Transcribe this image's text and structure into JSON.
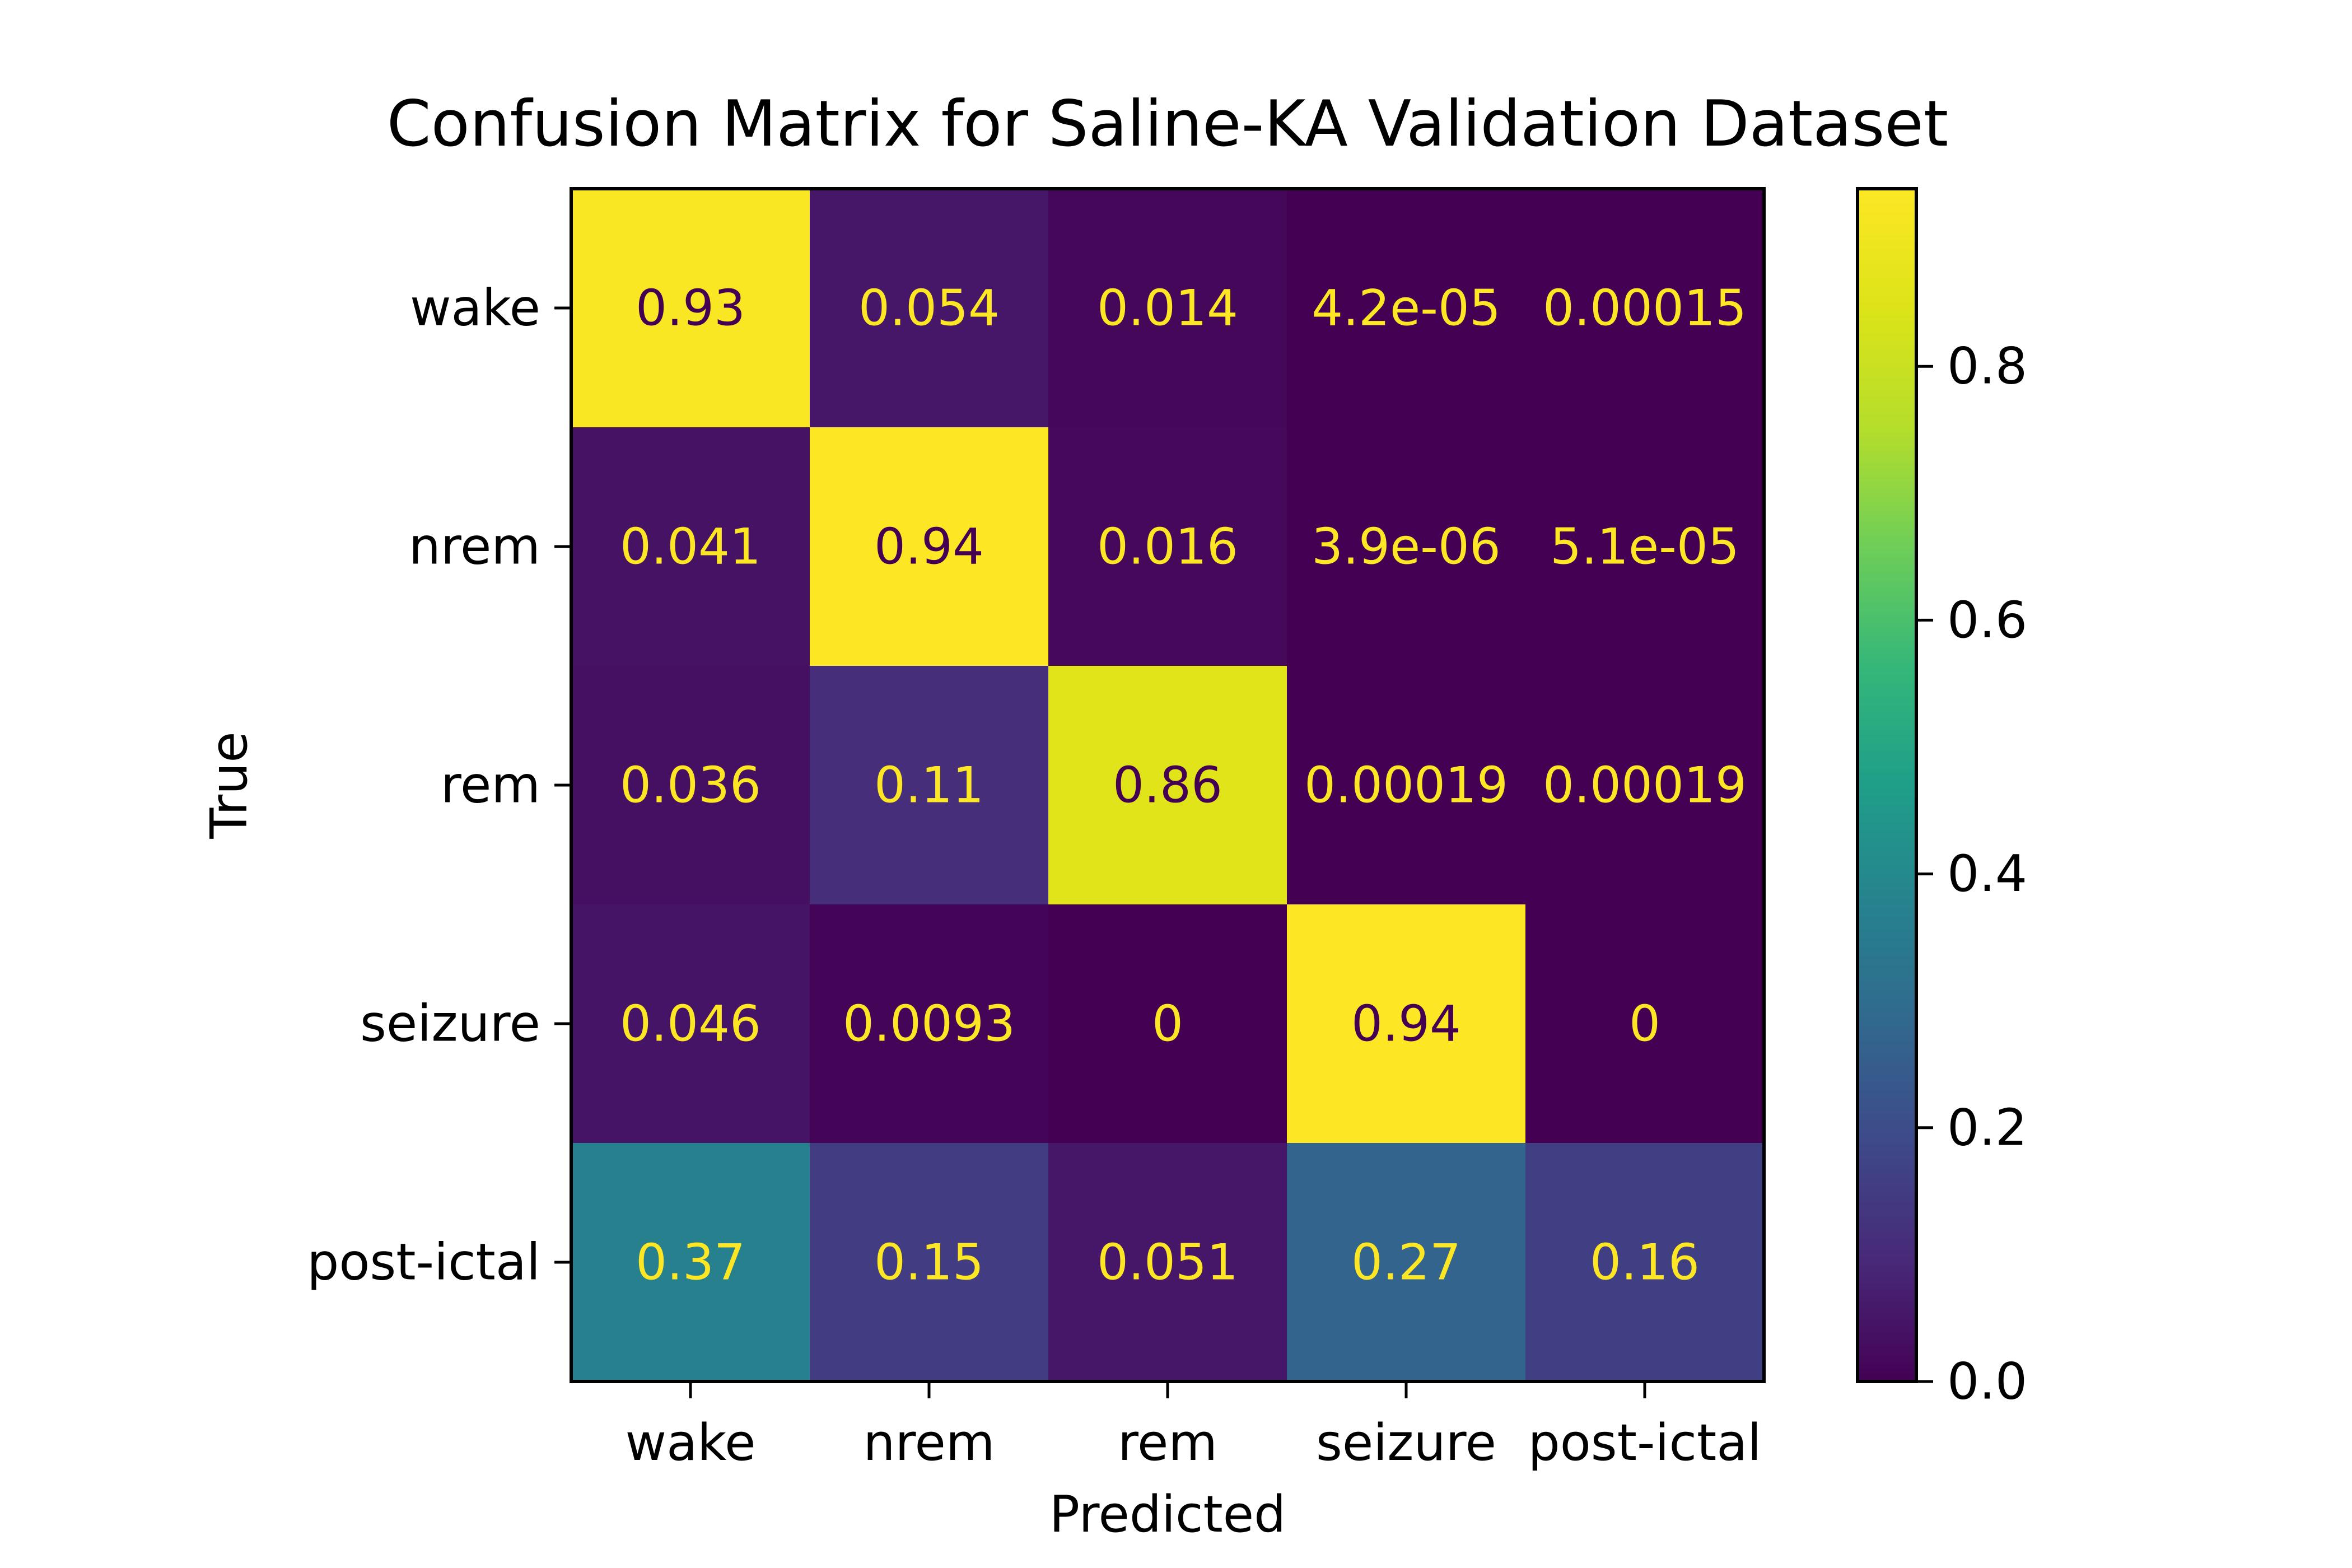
{
  "chart_data": {
    "type": "heatmap",
    "title": "Confusion Matrix for Saline-KA Validation Dataset",
    "xlabel": "Predicted",
    "ylabel": "True",
    "x_categories": [
      "wake",
      "nrem",
      "rem",
      "seizure",
      "post-ictal"
    ],
    "y_categories": [
      "wake",
      "nrem",
      "rem",
      "seizure",
      "post-ictal"
    ],
    "values": [
      [
        0.93,
        0.054,
        0.014,
        4.2e-05,
        0.00015
      ],
      [
        0.041,
        0.94,
        0.016,
        3.9e-06,
        5.1e-05
      ],
      [
        0.036,
        0.11,
        0.86,
        0.00019,
        0.00019
      ],
      [
        0.046,
        0.0093,
        0,
        0.94,
        0
      ],
      [
        0.37,
        0.15,
        0.051,
        0.27,
        0.16
      ]
    ],
    "cell_labels": [
      [
        "0.93",
        "0.054",
        "0.014",
        "4.2e-05",
        "0.00015"
      ],
      [
        "0.041",
        "0.94",
        "0.016",
        "3.9e-06",
        "5.1e-05"
      ],
      [
        "0.036",
        "0.11",
        "0.86",
        "0.00019",
        "0.00019"
      ],
      [
        "0.046",
        "0.0093",
        "0",
        "0.94",
        "0"
      ],
      [
        "0.37",
        "0.15",
        "0.051",
        "0.27",
        "0.16"
      ]
    ],
    "colormap": "viridis",
    "colorbar": {
      "range": [
        0,
        0.94
      ],
      "ticks": [
        0.0,
        0.2,
        0.4,
        0.6,
        0.8
      ],
      "tick_labels": [
        "0.0",
        "0.2",
        "0.4",
        "0.6",
        "0.8"
      ]
    },
    "text_colors": {
      "on_dark": "#fde725",
      "on_light": "#440154"
    }
  }
}
